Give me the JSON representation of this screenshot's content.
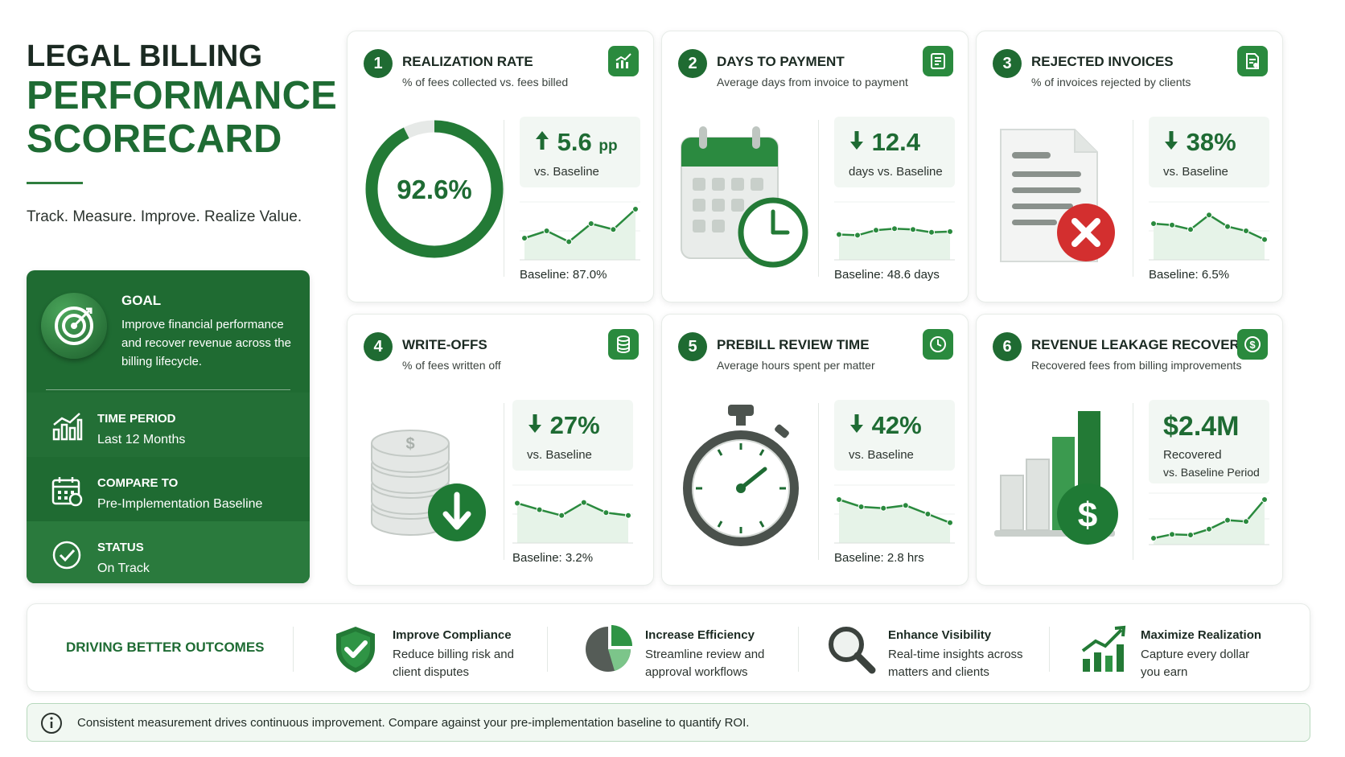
{
  "header": {
    "title_line1": "LEGAL BILLING",
    "title_line2": "PERFORMANCE",
    "title_line3": "SCORECARD",
    "tagline": "Track. Measure. Improve. Realize Value."
  },
  "goal_card": {
    "goal_label": "GOAL",
    "goal_text": "Improve financial performance and recover revenue across the billing lifecycle.",
    "time_period_label": "TIME PERIOD",
    "time_period_value": "Last 12 Months",
    "compare_label": "COMPARE TO",
    "compare_value": "Pre-Implementation Baseline",
    "status_label": "STATUS",
    "status_value": "On Track"
  },
  "cards": [
    {
      "number": "1",
      "title": "REALIZATION RATE",
      "subtitle": "% of fees collected vs. fees billed",
      "donut_value": "92.6%",
      "donut_fraction": 0.926,
      "metric_value": "5.6",
      "metric_unit": "pp",
      "direction": "up",
      "metric_label": "vs. Baseline",
      "baseline": "Baseline: 87.0%",
      "trend": [
        3,
        4,
        2.5,
        5,
        4.2,
        7
      ]
    },
    {
      "number": "2",
      "title": "DAYS TO PAYMENT",
      "subtitle": "Average days from invoice to payment",
      "metric_value": "12.4",
      "direction": "down",
      "metric_label": "days vs. Baseline",
      "baseline": "Baseline: 48.6 days",
      "trend": [
        3.5,
        3.4,
        4.1,
        4.3,
        4.2,
        3.8,
        3.9
      ]
    },
    {
      "number": "3",
      "title": "REJECTED INVOICES",
      "subtitle": "% of invoices rejected by clients",
      "metric_value": "38%",
      "direction": "down",
      "metric_label": "vs. Baseline",
      "baseline": "Baseline: 6.5%",
      "trend": [
        5,
        4.8,
        4.2,
        6.2,
        4.6,
        4,
        2.8
      ]
    },
    {
      "number": "4",
      "title": "WRITE-OFFS",
      "subtitle": "% of fees written off",
      "metric_value": "27%",
      "direction": "down",
      "metric_label": "vs. Baseline",
      "baseline": "Baseline: 3.2%",
      "trend": [
        5.5,
        4.6,
        3.8,
        5.6,
        4.2,
        3.8
      ]
    },
    {
      "number": "5",
      "title": "PREBILL REVIEW TIME",
      "subtitle": "Average hours spent per matter",
      "metric_value": "42%",
      "direction": "down",
      "metric_label": "vs. Baseline",
      "baseline": "Baseline: 2.8 hrs",
      "trend": [
        6,
        5,
        4.8,
        5.2,
        4,
        2.8
      ]
    },
    {
      "number": "6",
      "title": "REVENUE LEAKAGE RECOVERED",
      "subtitle": "Recovered fees from billing improvements",
      "metric_value": "$2.4M",
      "metric_label": "Recovered",
      "metric_label2": "vs. Baseline Period",
      "trend": [
        1,
        1.6,
        1.5,
        2.4,
        3.8,
        3.6,
        7
      ]
    }
  ],
  "outcomes": {
    "title": "DRIVING BETTER OUTCOMES",
    "items": [
      {
        "head": "Improve Compliance",
        "text": "Reduce billing risk and client disputes",
        "icon": "shield-check-icon"
      },
      {
        "head": "Increase Efficiency",
        "text": "Streamline review and approval workflows",
        "icon": "pie-chart-icon"
      },
      {
        "head": "Enhance Visibility",
        "text": "Real-time insights across matters and clients",
        "icon": "magnifier-icon"
      },
      {
        "head": "Maximize Realization",
        "text": "Capture every dollar you earn",
        "icon": "growth-chart-icon"
      }
    ]
  },
  "note": {
    "text": "Consistent measurement drives continuous improvement. Compare against your pre-implementation baseline to quantify ROI."
  },
  "colors": {
    "primary_green": "#1e6b33",
    "accent_green": "#2a8a3e",
    "danger_red": "#d32f2f"
  }
}
